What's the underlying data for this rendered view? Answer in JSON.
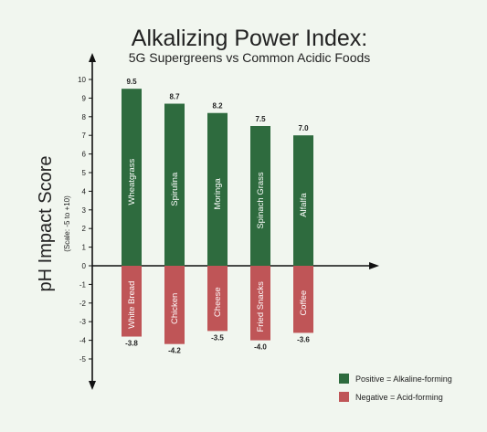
{
  "chart_data": {
    "type": "bar",
    "title": "Alkalizing Power Index:",
    "subtitle": "5G Supergreens vs Common Acidic Foods",
    "ylabel": "pH Impact Score",
    "ylabel_sub": "(Scale: -5 to +10)",
    "ylim": [
      -5,
      10
    ],
    "yticks": [
      10,
      9,
      8,
      7,
      6,
      5,
      4,
      3,
      2,
      1,
      0,
      -1,
      -2,
      -3,
      -4,
      -5
    ],
    "grid": false,
    "legend_position": "bottom-right",
    "series": [
      {
        "name": "Positive = Alkaline-forming",
        "color": "#2e6b3e",
        "categories": [
          "Wheatgrass",
          "Spirulina",
          "Moringa",
          "Spinach Grass",
          "Alfalfa"
        ],
        "values": [
          9.5,
          8.7,
          8.2,
          7.5,
          7.0
        ],
        "labels": [
          "9.5",
          "8.7",
          "8.2",
          "7.5",
          "7.0"
        ]
      },
      {
        "name": "Negative = Acid-forming",
        "color": "#bf5557",
        "categories": [
          "White Bread",
          "Chicken",
          "Cheese",
          "Fried Snacks",
          "Coffee"
        ],
        "values": [
          -3.8,
          -4.2,
          -3.5,
          -4.0,
          -3.6
        ],
        "labels": [
          "-3.8",
          "-4.2",
          "-3.5",
          "-4.0",
          "-3.6"
        ]
      }
    ]
  }
}
